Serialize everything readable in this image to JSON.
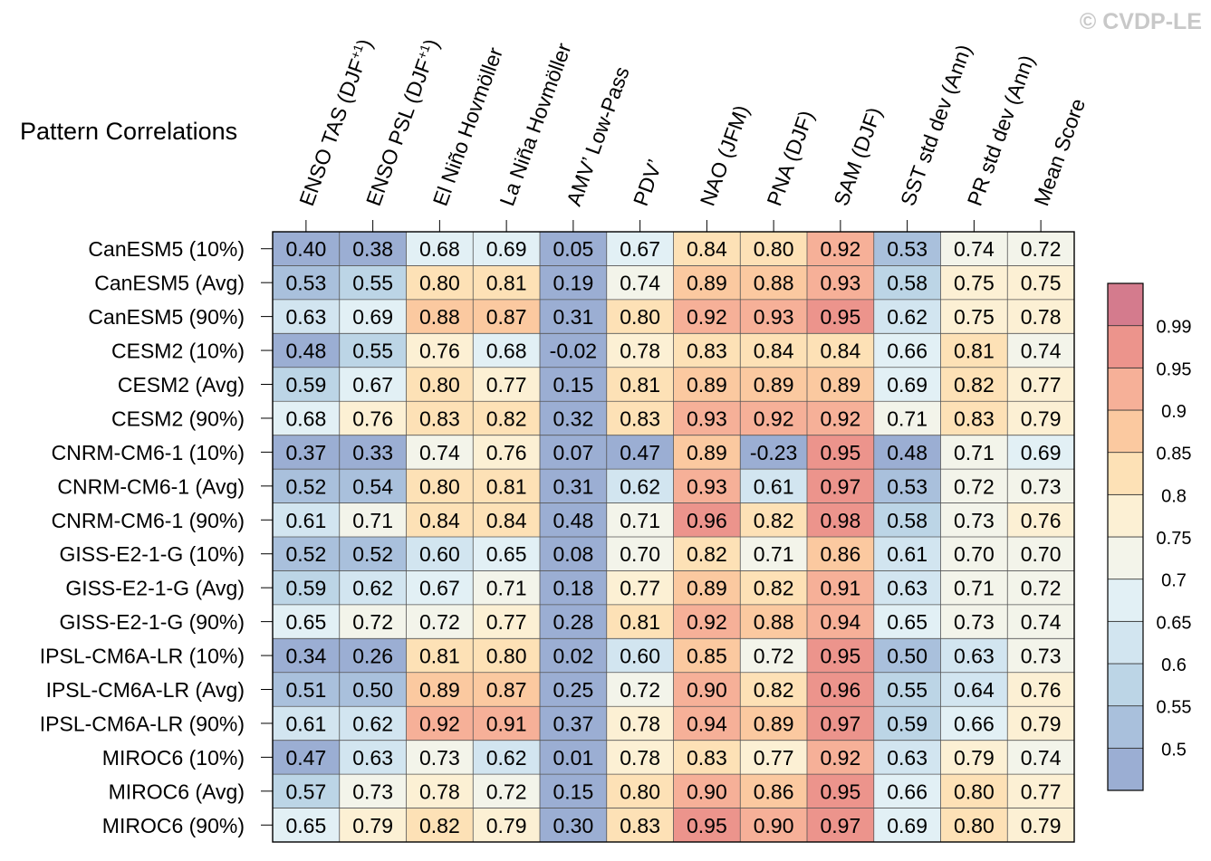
{
  "watermark": "© CVDP-LE",
  "chart_data": {
    "type": "heatmap",
    "title": "Pattern Correlations",
    "columns": [
      "ENSO TAS (DJF+1)",
      "ENSO PSL (DJF+1)",
      "El Niño Hovmöller",
      "La Niña Hovmöller",
      "AMV’ Low-Pass",
      "PDV’",
      "NAO (JFM)",
      "PNA (DJF)",
      "SAM (DJF)",
      "SST std dev (Ann)",
      "PR std dev (Ann)",
      "Mean Score"
    ],
    "rows": [
      "CanESM5 (10%)",
      "CanESM5 (Avg)",
      "CanESM5 (90%)",
      "CESM2 (10%)",
      "CESM2 (Avg)",
      "CESM2 (90%)",
      "CNRM-CM6-1 (10%)",
      "CNRM-CM6-1 (Avg)",
      "CNRM-CM6-1 (90%)",
      "GISS-E2-1-G (10%)",
      "GISS-E2-1-G (Avg)",
      "GISS-E2-1-G (90%)",
      "IPSL-CM6A-LR (10%)",
      "IPSL-CM6A-LR (Avg)",
      "IPSL-CM6A-LR (90%)",
      "MIROC6 (10%)",
      "MIROC6 (Avg)",
      "MIROC6 (90%)"
    ],
    "values": [
      [
        "0.40",
        "0.38",
        "0.68",
        "0.69",
        "0.05",
        "0.67",
        "0.84",
        "0.80",
        "0.92",
        "0.53",
        "0.74",
        "0.72"
      ],
      [
        "0.53",
        "0.55",
        "0.80",
        "0.81",
        "0.19",
        "0.74",
        "0.89",
        "0.88",
        "0.93",
        "0.58",
        "0.75",
        "0.75"
      ],
      [
        "0.63",
        "0.69",
        "0.88",
        "0.87",
        "0.31",
        "0.80",
        "0.92",
        "0.93",
        "0.95",
        "0.62",
        "0.75",
        "0.78"
      ],
      [
        "0.48",
        "0.55",
        "0.76",
        "0.68",
        "-0.02",
        "0.78",
        "0.83",
        "0.84",
        "0.84",
        "0.66",
        "0.81",
        "0.74"
      ],
      [
        "0.59",
        "0.67",
        "0.80",
        "0.77",
        "0.15",
        "0.81",
        "0.89",
        "0.89",
        "0.89",
        "0.69",
        "0.82",
        "0.77"
      ],
      [
        "0.68",
        "0.76",
        "0.83",
        "0.82",
        "0.32",
        "0.83",
        "0.93",
        "0.92",
        "0.92",
        "0.71",
        "0.83",
        "0.79"
      ],
      [
        "0.37",
        "0.33",
        "0.74",
        "0.76",
        "0.07",
        "0.47",
        "0.89",
        "-0.23",
        "0.95",
        "0.48",
        "0.71",
        "0.69"
      ],
      [
        "0.52",
        "0.54",
        "0.80",
        "0.81",
        "0.31",
        "0.62",
        "0.93",
        "0.61",
        "0.97",
        "0.53",
        "0.72",
        "0.73"
      ],
      [
        "0.61",
        "0.71",
        "0.84",
        "0.84",
        "0.48",
        "0.71",
        "0.96",
        "0.82",
        "0.98",
        "0.58",
        "0.73",
        "0.76"
      ],
      [
        "0.52",
        "0.52",
        "0.60",
        "0.65",
        "0.08",
        "0.70",
        "0.82",
        "0.71",
        "0.86",
        "0.61",
        "0.70",
        "0.70"
      ],
      [
        "0.59",
        "0.62",
        "0.67",
        "0.71",
        "0.18",
        "0.77",
        "0.89",
        "0.82",
        "0.91",
        "0.63",
        "0.71",
        "0.72"
      ],
      [
        "0.65",
        "0.72",
        "0.72",
        "0.77",
        "0.28",
        "0.81",
        "0.92",
        "0.88",
        "0.94",
        "0.65",
        "0.73",
        "0.74"
      ],
      [
        "0.34",
        "0.26",
        "0.81",
        "0.80",
        "0.02",
        "0.60",
        "0.85",
        "0.72",
        "0.95",
        "0.50",
        "0.63",
        "0.73"
      ],
      [
        "0.51",
        "0.50",
        "0.89",
        "0.87",
        "0.25",
        "0.72",
        "0.90",
        "0.82",
        "0.96",
        "0.55",
        "0.64",
        "0.76"
      ],
      [
        "0.61",
        "0.62",
        "0.92",
        "0.91",
        "0.37",
        "0.78",
        "0.94",
        "0.89",
        "0.97",
        "0.59",
        "0.66",
        "0.79"
      ],
      [
        "0.47",
        "0.63",
        "0.73",
        "0.62",
        "0.01",
        "0.78",
        "0.83",
        "0.77",
        "0.92",
        "0.63",
        "0.79",
        "0.74"
      ],
      [
        "0.57",
        "0.73",
        "0.78",
        "0.72",
        "0.15",
        "0.80",
        "0.90",
        "0.86",
        "0.95",
        "0.66",
        "0.80",
        "0.77"
      ],
      [
        "0.65",
        "0.79",
        "0.82",
        "0.79",
        "0.30",
        "0.83",
        "0.95",
        "0.90",
        "0.97",
        "0.69",
        "0.80",
        "0.79"
      ]
    ],
    "colorbar": {
      "ticks": [
        "0.5",
        "0.55",
        "0.6",
        "0.65",
        "0.7",
        "0.75",
        "0.8",
        "0.85",
        "0.9",
        "0.95",
        "0.99"
      ],
      "colors": [
        "#9baed3",
        "#a9c0dc",
        "#bcd5e6",
        "#d2e5f0",
        "#e2f0f5",
        "#f3f4ea",
        "#fcf0d4",
        "#fde1b6",
        "#fbc9a0",
        "#f6b098",
        "#ec948c",
        "#d47b8d"
      ]
    }
  }
}
